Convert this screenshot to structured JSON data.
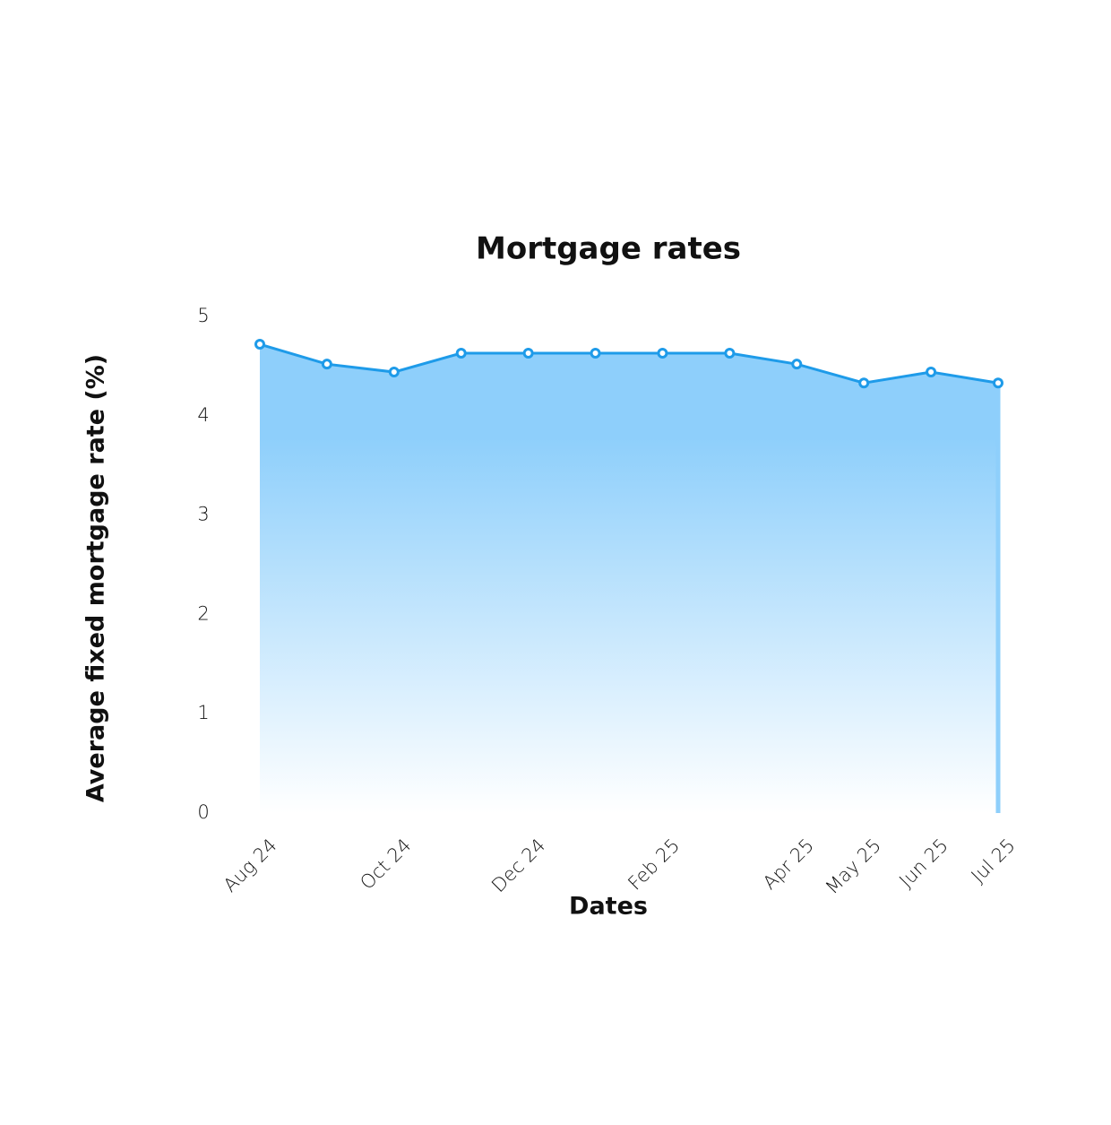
{
  "chart_data": {
    "type": "area",
    "title": "Mortgage rates",
    "x_label": "Dates",
    "y_label": "Average fixed mortgage rate (%)",
    "categories": [
      "Aug 24",
      null,
      "Oct 24",
      null,
      "Dec 24",
      null,
      "Feb 25",
      null,
      "Apr 25",
      "May 25",
      "Jun 25",
      "Jul 25"
    ],
    "values": [
      4.72,
      4.52,
      4.44,
      4.63,
      4.63,
      4.63,
      4.63,
      4.63,
      4.52,
      4.33,
      4.44,
      4.33
    ],
    "color": "#1e9be9",
    "fill_color": "#8ecffb",
    "ylim": [
      0,
      5
    ],
    "yticks": [
      0,
      1,
      2,
      3,
      4,
      5
    ],
    "grid": false
  }
}
